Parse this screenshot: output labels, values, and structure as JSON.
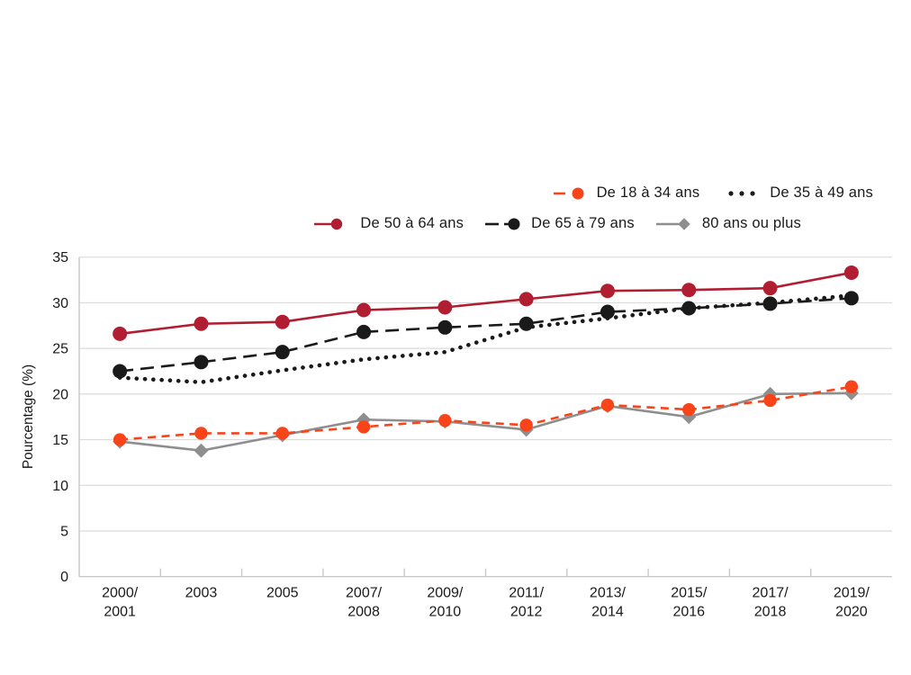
{
  "chart_data": {
    "type": "line",
    "title": "",
    "xlabel": "",
    "ylabel": "Pourcentage (%)",
    "ylim": [
      0,
      35
    ],
    "yticks": [
      0,
      5,
      10,
      15,
      20,
      25,
      30,
      35
    ],
    "grid": "horizontal",
    "legend_position": "top-right",
    "categories": [
      [
        "2000/",
        "2001"
      ],
      [
        "2003"
      ],
      [
        "2005"
      ],
      [
        "2007/",
        "2008"
      ],
      [
        "2009/",
        "2010"
      ],
      [
        "2011/",
        "2012"
      ],
      [
        "2013/",
        "2014"
      ],
      [
        "2015/",
        "2016"
      ],
      [
        "2017/",
        "2018"
      ],
      [
        "2019/",
        "2020"
      ]
    ],
    "series": [
      {
        "name": "De 18 à 34 ans",
        "color": "#F94319",
        "line_style": "dashed",
        "marker": "circle",
        "values": [
          15.0,
          15.7,
          15.7,
          16.4,
          17.1,
          16.6,
          18.8,
          18.3,
          19.3,
          20.8
        ]
      },
      {
        "name": "De 35 à 49 ans",
        "color": "#1A1A1A",
        "line_style": "dotted",
        "marker": "none",
        "values": [
          21.8,
          21.3,
          22.6,
          23.8,
          24.6,
          27.3,
          28.3,
          29.4,
          30.0,
          30.8
        ]
      },
      {
        "name": "De 50 à 64 ans",
        "color": "#B11E31",
        "line_style": "solid",
        "marker": "circle",
        "values": [
          26.6,
          27.7,
          27.9,
          29.2,
          29.5,
          30.4,
          31.3,
          31.4,
          31.6,
          33.3
        ]
      },
      {
        "name": "De 65 à 79 ans",
        "color": "#1A1A1A",
        "line_style": "longdash",
        "marker": "circle",
        "values": [
          22.5,
          23.5,
          24.6,
          26.8,
          27.3,
          27.7,
          29.0,
          29.4,
          29.9,
          30.5
        ]
      },
      {
        "name": "80 ans ou plus",
        "color": "#8E8E8E",
        "line_style": "solid",
        "marker": "diamond",
        "values": [
          14.8,
          13.8,
          15.5,
          17.2,
          17.0,
          16.1,
          18.7,
          17.5,
          20.0,
          20.1
        ]
      }
    ],
    "legend_rows": [
      [
        "De 18 à 34 ans",
        "De 35 à 49 ans"
      ],
      [
        "De 50 à 64 ans",
        "De 65 à 79 ans",
        "80 ans ou plus"
      ]
    ],
    "draw_order": [
      1,
      3,
      4,
      0,
      2
    ]
  },
  "colors": {
    "grid": "#DBDBDB",
    "axis": "#C9C9C9",
    "text": "#1A1A1A",
    "background": "#FFFFFF"
  }
}
